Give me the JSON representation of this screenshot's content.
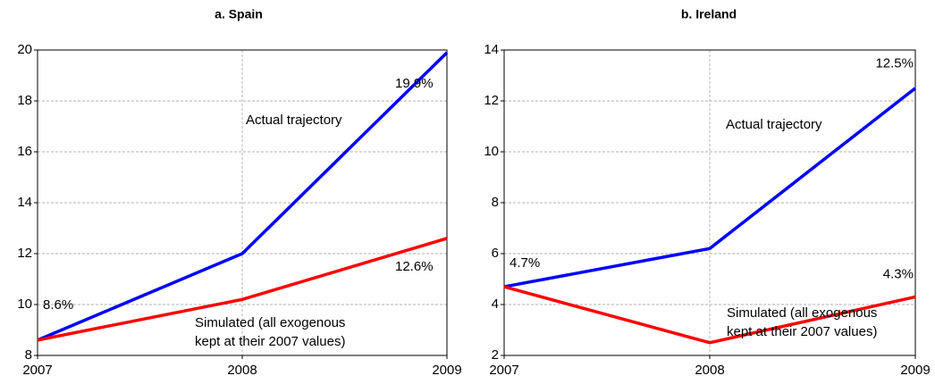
{
  "chart_data": [
    {
      "type": "line",
      "title": "a. Spain",
      "x": [
        2007,
        2008,
        2009
      ],
      "xlim": [
        2007,
        2009
      ],
      "xticks": [
        2007,
        2008,
        2009
      ],
      "ylim": [
        8,
        20
      ],
      "yticks": [
        8,
        10,
        12,
        14,
        16,
        18,
        20
      ],
      "grid": true,
      "series": [
        {
          "name": "Actual trajectory",
          "color": "#0000ff",
          "values": [
            8.6,
            12.0,
            19.9
          ],
          "value_labels": [
            "8.6%",
            null,
            "19.9%"
          ]
        },
        {
          "name": [
            "Simulated (all exogenous",
            "kept at their 2007 values)"
          ],
          "color": "#ff0000",
          "values": [
            8.6,
            10.2,
            12.6
          ],
          "value_labels": [
            null,
            null,
            "12.6%"
          ]
        }
      ]
    },
    {
      "type": "line",
      "title": "b. Ireland",
      "x": [
        2007,
        2008,
        2009
      ],
      "xlim": [
        2007,
        2009
      ],
      "xticks": [
        2007,
        2008,
        2009
      ],
      "ylim": [
        2,
        14
      ],
      "yticks": [
        2,
        4,
        6,
        8,
        10,
        12,
        14
      ],
      "grid": true,
      "series": [
        {
          "name": "Actual trajectory",
          "color": "#0000ff",
          "values": [
            4.7,
            6.2,
            12.5
          ],
          "value_labels": [
            "4.7%",
            null,
            "12.5%"
          ]
        },
        {
          "name": [
            "Simulated (all exogenous",
            "kept at their 2007 values)"
          ],
          "color": "#ff0000",
          "values": [
            4.7,
            2.5,
            4.3
          ],
          "value_labels": [
            null,
            null,
            "4.3%"
          ]
        }
      ]
    }
  ]
}
